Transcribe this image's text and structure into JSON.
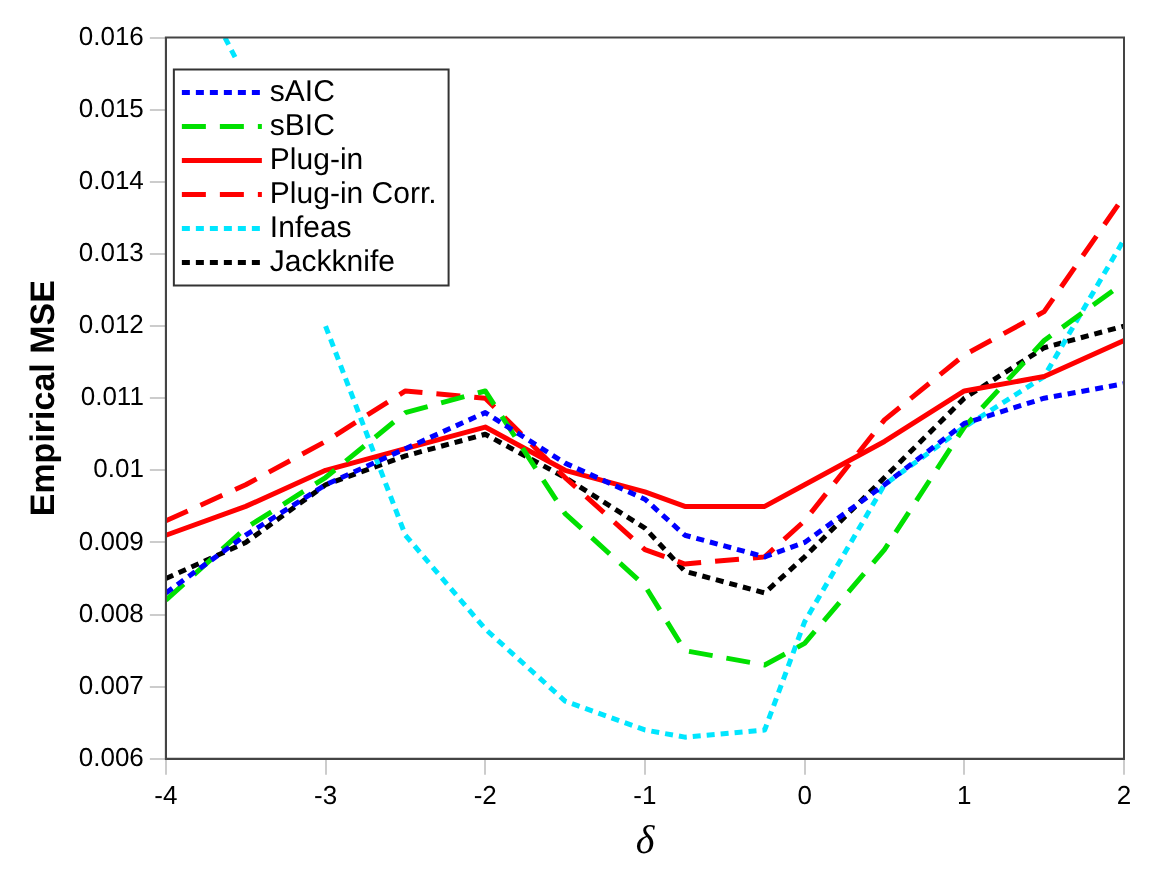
{
  "chart_data": {
    "type": "line",
    "xlabel": "δ",
    "ylabel": "Empirical MSE",
    "x": [
      -4,
      -3.5,
      -3,
      -2.5,
      -2,
      -1.5,
      -1,
      -0.75,
      -0.25,
      0,
      0.5,
      1,
      1.5,
      2
    ],
    "xlim": [
      -4,
      2
    ],
    "xticks": [
      -4,
      -3,
      -2,
      -1,
      0,
      1,
      2
    ],
    "ylim": [
      0.006,
      0.016
    ],
    "yticks": [
      0.006,
      0.007,
      0.008,
      0.009,
      0.01,
      0.011,
      0.012,
      0.013,
      0.014,
      0.015,
      0.016
    ],
    "legend": "top left",
    "grid": false,
    "marker": "none",
    "series": [
      {
        "name": "sAIC",
        "color": "#0000ff",
        "line_style": "dotted",
        "values": [
          0.0083,
          0.0091,
          0.0098,
          0.0103,
          0.0108,
          0.0101,
          0.0096,
          0.0091,
          0.0088,
          0.009,
          0.0098,
          0.01065,
          0.011,
          0.0112
        ]
      },
      {
        "name": "sBIC",
        "color": "#00e000",
        "line_style": "dashed",
        "values": [
          0.0082,
          0.0092,
          0.0099,
          0.0108,
          0.0111,
          0.0094,
          0.0084,
          0.0075,
          0.0073,
          0.0076,
          0.0089,
          0.0106,
          0.0118,
          0.0126
        ]
      },
      {
        "name": "Plug-in",
        "color": "#ff0000",
        "line_style": "solid",
        "values": [
          0.0091,
          0.0095,
          0.01,
          0.0103,
          0.0106,
          0.01,
          0.0097,
          0.0095,
          0.0095,
          0.0098,
          0.0104,
          0.0111,
          0.0113,
          0.0118
        ]
      },
      {
        "name": "Plug-in Corr.",
        "color": "#ff0000",
        "line_style": "dashed",
        "values": [
          0.0093,
          0.0098,
          0.0104,
          0.0111,
          0.011,
          0.0099,
          0.0089,
          0.0087,
          0.0088,
          0.0093,
          0.0107,
          0.0116,
          0.0122,
          0.0138
        ]
      },
      {
        "name": "Infeas",
        "color": "#00e6ff",
        "line_style": "dotted",
        "x": [
          -3.63,
          -3.56,
          -3.25,
          -3,
          -2.5,
          -2,
          -1.5,
          -1,
          -0.75,
          -0.25,
          0,
          0.5,
          1,
          1.5,
          2
        ],
        "values": [
          0.016,
          0.0157,
          null,
          0.012,
          0.0091,
          0.0078,
          0.0068,
          0.0064,
          0.0063,
          0.0064,
          0.0079,
          0.0098,
          0.0106,
          0.0113,
          0.0132
        ]
      },
      {
        "name": "Jackknife",
        "color": "#000000",
        "line_style": "dotted",
        "values": [
          0.0085,
          0.009,
          0.0098,
          0.0102,
          0.0105,
          0.0099,
          0.0092,
          0.0086,
          0.0083,
          0.0088,
          0.0099,
          0.011,
          0.0117,
          0.012
        ]
      }
    ]
  }
}
